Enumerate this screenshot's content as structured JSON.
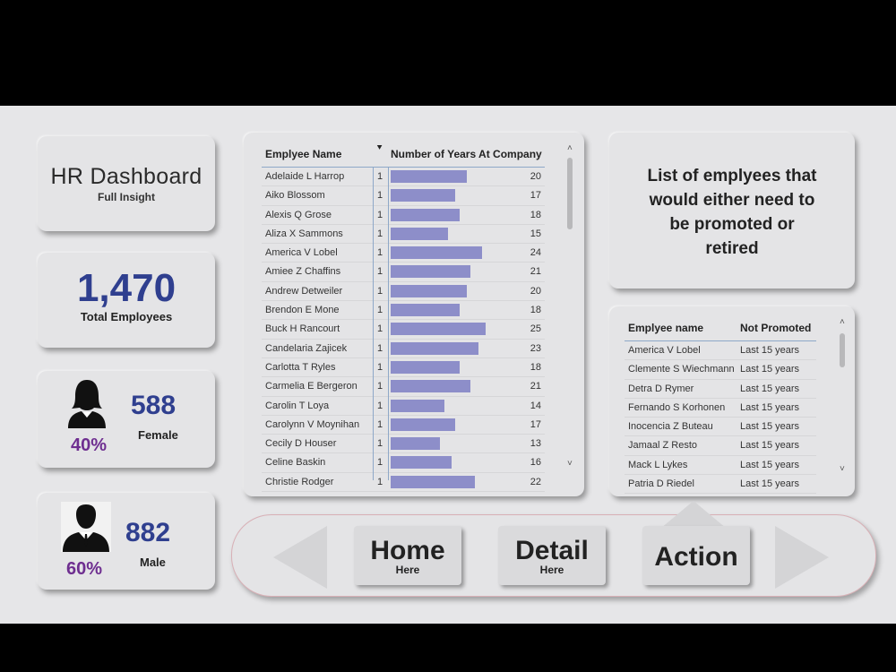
{
  "title_card": {
    "title": "HR Dashboard",
    "subtitle": "Full Insight"
  },
  "total_card": {
    "value": "1,470",
    "label": "Total Employees"
  },
  "female_card": {
    "count": "588",
    "label": "Female",
    "pct": "40%",
    "icon": "female-person-icon"
  },
  "male_card": {
    "count": "882",
    "label": "Male",
    "pct": "60%",
    "icon": "male-person-icon"
  },
  "years_table": {
    "headers": {
      "name": "Emplyee Name",
      "years": "Number of Years At Company"
    },
    "rows": [
      {
        "name": "Adelaide L Harrop",
        "flag": "1",
        "years": "20"
      },
      {
        "name": "Aiko Blossom",
        "flag": "1",
        "years": "17"
      },
      {
        "name": "Alexis Q Grose",
        "flag": "1",
        "years": "18"
      },
      {
        "name": "Aliza X Sammons",
        "flag": "1",
        "years": "15"
      },
      {
        "name": "America V Lobel",
        "flag": "1",
        "years": "24"
      },
      {
        "name": "Amiee Z Chaffins",
        "flag": "1",
        "years": "21"
      },
      {
        "name": "Andrew Detweiler",
        "flag": "1",
        "years": "20"
      },
      {
        "name": "Brendon E Mone",
        "flag": "1",
        "years": "18"
      },
      {
        "name": "Buck H Rancourt",
        "flag": "1",
        "years": "25"
      },
      {
        "name": "Candelaria Zajicek",
        "flag": "1",
        "years": "23"
      },
      {
        "name": "Carlotta T Ryles",
        "flag": "1",
        "years": "18"
      },
      {
        "name": "Carmelia E Bergeron",
        "flag": "1",
        "years": "21"
      },
      {
        "name": "Carolin T Loya",
        "flag": "1",
        "years": "14"
      },
      {
        "name": "Carolynn V Moynihan",
        "flag": "1",
        "years": "17"
      },
      {
        "name": "Cecily D Houser",
        "flag": "1",
        "years": "13"
      },
      {
        "name": "Celine Baskin",
        "flag": "1",
        "years": "16"
      },
      {
        "name": "Christie Rodger",
        "flag": "1",
        "years": "22"
      }
    ],
    "bar_color": "#8d8ec9"
  },
  "info_card": {
    "lines": [
      "List of emplyees that",
      "would either need to",
      "be promoted or",
      "retired"
    ]
  },
  "not_promoted_table": {
    "headers": {
      "name": "Emplyee name",
      "status": "Not Promoted"
    },
    "rows": [
      {
        "name": "America V Lobel",
        "status": "Last 15 years"
      },
      {
        "name": "Clemente S Wiechmann",
        "status": "Last 15 years"
      },
      {
        "name": "Detra D Rymer",
        "status": "Last 15 years"
      },
      {
        "name": "Fernando S Korhonen",
        "status": "Last 15 years"
      },
      {
        "name": "Inocencia Z Buteau",
        "status": "Last 15 years"
      },
      {
        "name": "Jamaal Z Resto",
        "status": "Last 15 years"
      },
      {
        "name": "Mack L Lykes",
        "status": "Last 15 years"
      },
      {
        "name": "Patria D Riedel",
        "status": "Last 15 years"
      }
    ]
  },
  "nav": {
    "home": {
      "label": "Home",
      "sub": "Here"
    },
    "detail": {
      "label": "Detail",
      "sub": "Here"
    },
    "action": {
      "label": "Action"
    }
  },
  "colors": {
    "accent_blue": "#2f3f8f",
    "accent_purple": "#6e2e90"
  }
}
